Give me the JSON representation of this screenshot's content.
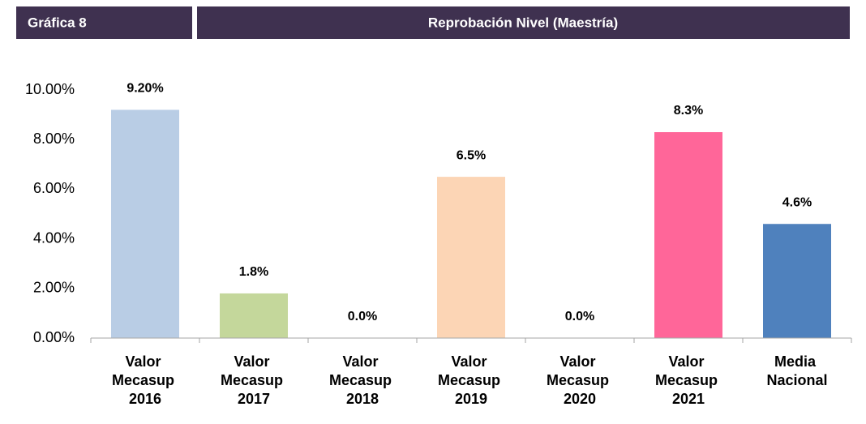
{
  "header": {
    "label": "Gráfica 8"
  },
  "chart_data": {
    "type": "bar",
    "title": "Reprobación Nivel (Maestría)",
    "categories": [
      "Valor Mecasup 2016",
      "Valor Mecasup 2017",
      "Valor Mecasup 2018",
      "Valor Mecasup 2019",
      "Valor Mecasup 2020",
      "Valor Mecasup 2021",
      "Media Nacional"
    ],
    "values": [
      9.2,
      1.8,
      0,
      6.5,
      0,
      8.3,
      4.6
    ],
    "value_labels": [
      "9.20%",
      "1.8%",
      "0.0%",
      "6.5%",
      "0.0%",
      "8.3%",
      "4.6%"
    ],
    "colors": [
      "#b9cde5",
      "#c4d79b",
      "#ffffff",
      "#fcd5b5",
      "#ffffff",
      "#ff6699",
      "#4f81bd"
    ],
    "ylim": [
      0,
      10
    ],
    "yticks": [
      {
        "value": 0,
        "label": "0.00%"
      },
      {
        "value": 2,
        "label": "2.00%"
      },
      {
        "value": 4,
        "label": "4.00%"
      },
      {
        "value": 6,
        "label": "6.00%"
      },
      {
        "value": 8,
        "label": "8.00%"
      },
      {
        "value": 10,
        "label": "10.00%"
      }
    ],
    "grid": false
  }
}
